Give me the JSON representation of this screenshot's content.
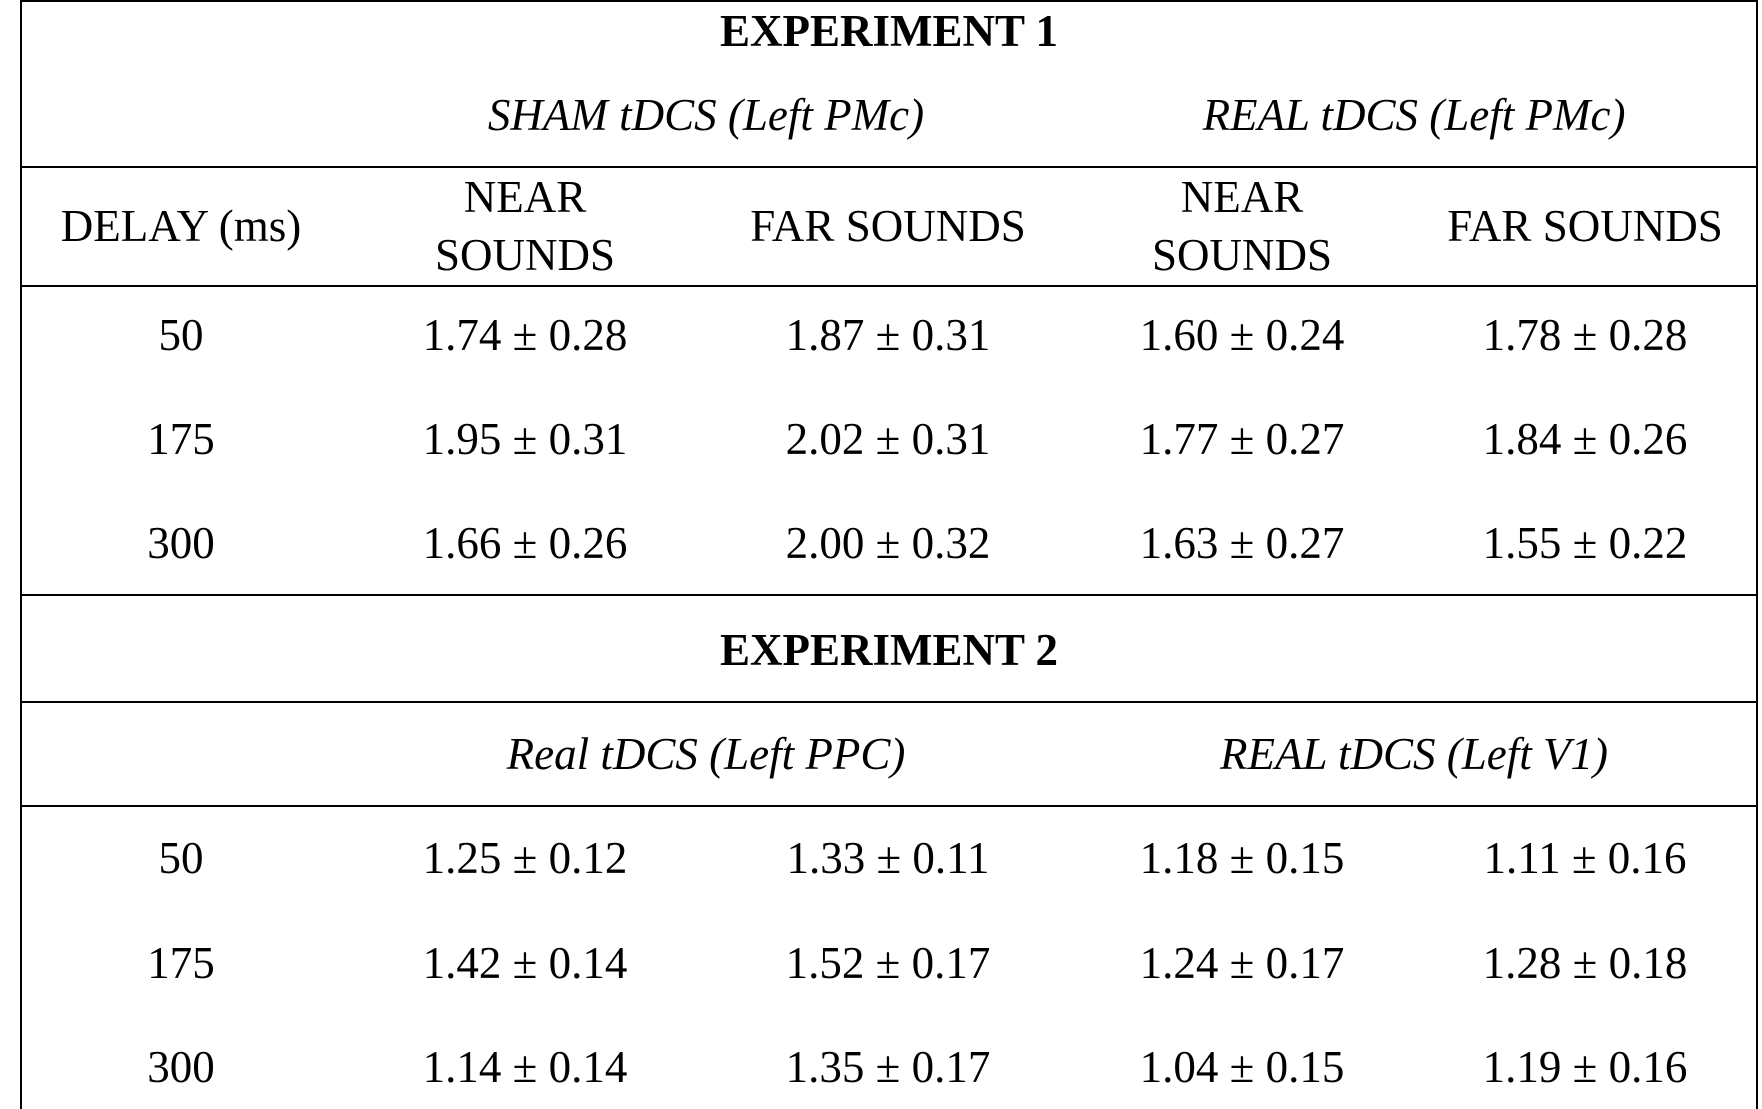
{
  "experiment1": {
    "title": "EXPERIMENT 1",
    "groups": [
      "SHAM tDCS (Left PMc)",
      "REAL tDCS (Left PMc)"
    ],
    "headers": [
      "DELAY (ms)",
      "NEAR SOUNDS",
      "FAR SOUNDS",
      "NEAR SOUNDS",
      "FAR SOUNDS"
    ],
    "rows": [
      [
        "50",
        "1.74 ± 0.28",
        "1.87 ± 0.31",
        "1.60 ± 0.24",
        "1.78 ± 0.28"
      ],
      [
        "175",
        "1.95 ± 0.31",
        "2.02 ± 0.31",
        "1.77 ± 0.27",
        "1.84 ± 0.26"
      ],
      [
        "300",
        "1.66 ± 0.26",
        "2.00 ± 0.32",
        "1.63 ± 0.27",
        "1.55 ± 0.22"
      ]
    ]
  },
  "experiment2": {
    "title": "EXPERIMENT 2",
    "groups": [
      "Real tDCS (Left PPC)",
      "REAL tDCS (Left V1)"
    ],
    "rows": [
      [
        "50",
        "1.25 ± 0.12",
        "1.33 ± 0.11",
        "1.18 ± 0.15",
        "1.11 ± 0.16"
      ],
      [
        "175",
        "1.42 ± 0.14",
        "1.52 ± 0.17",
        "1.24 ± 0.17",
        "1.28 ± 0.18"
      ],
      [
        "300",
        "1.14 ± 0.14",
        "1.35 ± 0.17",
        "1.04 ± 0.15",
        "1.19 ± 0.16"
      ]
    ]
  }
}
